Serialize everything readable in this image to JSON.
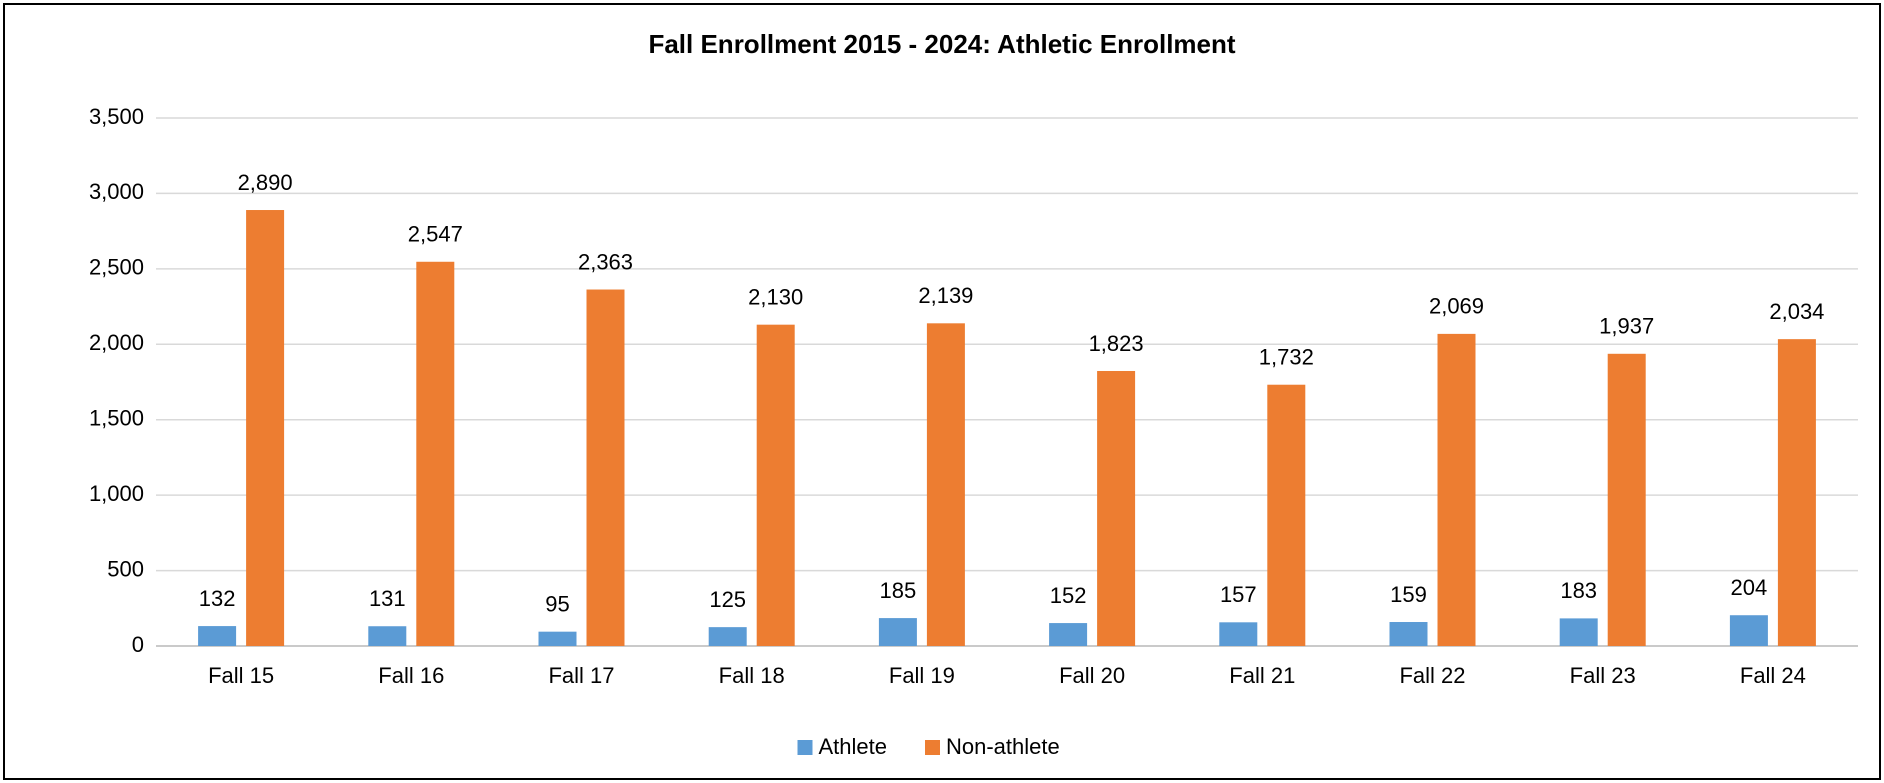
{
  "chart_data": {
    "type": "bar",
    "title": "Fall Enrollment 2015 - 2024: Athletic Enrollment",
    "categories": [
      "Fall 15",
      "Fall 16",
      "Fall 17",
      "Fall 18",
      "Fall 19",
      "Fall 20",
      "Fall 21",
      "Fall 22",
      "Fall 23",
      "Fall 24"
    ],
    "series": [
      {
        "name": "Athlete",
        "color": "#5b9bd5",
        "values": [
          132,
          131,
          95,
          125,
          185,
          152,
          157,
          159,
          183,
          204
        ]
      },
      {
        "name": "Non-athlete",
        "color": "#ed7d31",
        "values": [
          2890,
          2547,
          2363,
          2130,
          2139,
          1823,
          1732,
          2069,
          1937,
          2034
        ],
        "value_labels": [
          "2,890",
          "2,547",
          "2,363",
          "2,130",
          "2,139",
          "1,823",
          "1,732",
          "2,069",
          "1,937",
          "2,034"
        ]
      }
    ],
    "ylim": [
      0,
      3500
    ],
    "yticks": [
      0,
      500,
      {
        "value": 1000,
        "label": "1,000"
      },
      {
        "value": 1500,
        "label": "1,500"
      },
      {
        "value": 2000,
        "label": "2,000"
      },
      {
        "value": 2500,
        "label": "2,500"
      },
      {
        "value": 3000,
        "label": "3,000"
      },
      {
        "value": 3500,
        "label": "3,500"
      }
    ],
    "grid": true,
    "legend": "bottom"
  }
}
